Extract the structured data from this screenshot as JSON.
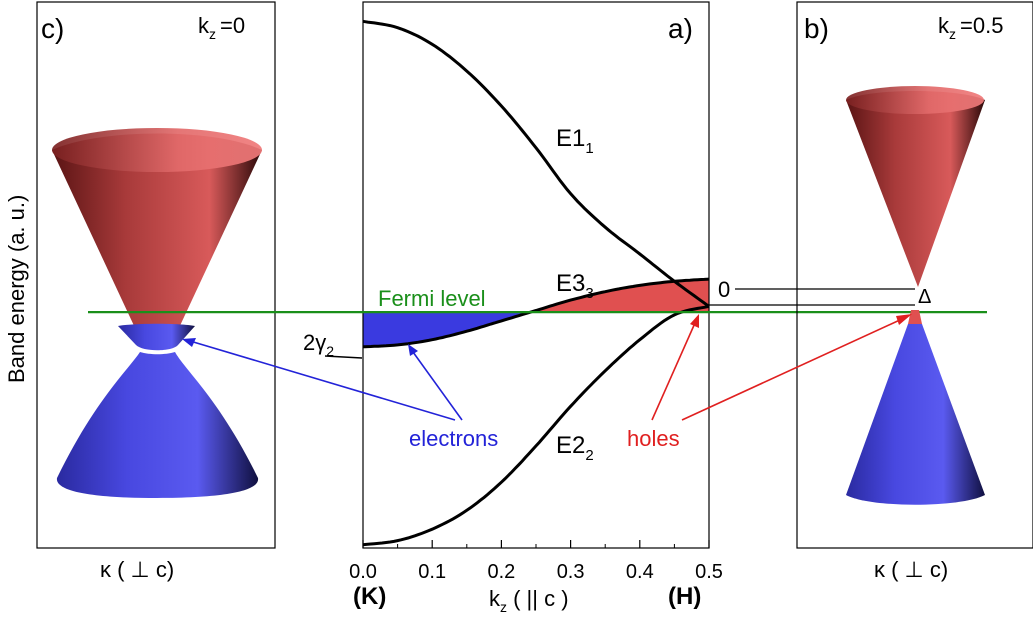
{
  "figure": {
    "y_axis_label": "Band energy (a. u.)",
    "fermi_label": "Fermi level",
    "electrons_label": "electrons",
    "holes_label": "holes",
    "zero_label": "0",
    "delta_label": "Δ",
    "gamma_prefix": "2",
    "gamma_symbol": "γ",
    "gamma_sub": "2",
    "colors": {
      "fermi": "#1a8f1a",
      "electrons": "#2323d8",
      "holes": "#e02020",
      "cone_red": "#c44a4a",
      "cone_blue": "#4a4ae0",
      "axis": "#000000"
    }
  },
  "panel_c": {
    "tag": "c)",
    "kz_prefix": "k",
    "kz_sub": "z",
    "kz_value": "=0",
    "xlabel": "κ ( ⊥ c)"
  },
  "panel_b": {
    "tag": "b)",
    "kz_prefix": "k",
    "kz_sub": "z",
    "kz_value": "=0.5",
    "xlabel": "κ ( ⊥ c)"
  },
  "panel_a": {
    "tag": "a)",
    "xlabel_main": "k",
    "xlabel_sub": "z",
    "xlabel_tail": " ( || c )",
    "point_K": "(K)",
    "point_H": "(H)"
  },
  "chart_data": {
    "type": "line",
    "xlim": [
      0.0,
      0.5
    ],
    "ylim": [
      -1.0,
      1.0
    ],
    "xticks": [
      "0.0",
      "0.1",
      "0.2",
      "0.3",
      "0.4",
      "0.5"
    ],
    "fermi_level": -0.136,
    "series": [
      {
        "name": "E1",
        "sub": "1",
        "x": [
          0.0,
          0.05,
          0.1,
          0.15,
          0.2,
          0.25,
          0.3,
          0.35,
          0.4,
          0.45,
          0.5
        ],
        "y": [
          0.929,
          0.906,
          0.845,
          0.747,
          0.619,
          0.466,
          0.298,
          0.175,
          0.077,
          -0.023,
          -0.115
        ]
      },
      {
        "name": "E2",
        "sub": "2",
        "x": [
          0.0,
          0.05,
          0.1,
          0.15,
          0.2,
          0.25,
          0.3,
          0.35,
          0.4,
          0.45,
          0.5
        ],
        "y": [
          -0.988,
          -0.973,
          -0.931,
          -0.862,
          -0.759,
          -0.626,
          -0.481,
          -0.351,
          -0.237,
          -0.146,
          -0.115
        ]
      },
      {
        "name": "E3",
        "sub": "3",
        "x": [
          0.0,
          0.05,
          0.1,
          0.15,
          0.2,
          0.25,
          0.3,
          0.35,
          0.4,
          0.45,
          0.5
        ],
        "y": [
          -0.263,
          -0.256,
          -0.237,
          -0.206,
          -0.168,
          -0.13,
          -0.092,
          -0.061,
          -0.038,
          -0.023,
          -0.015
        ]
      }
    ]
  }
}
